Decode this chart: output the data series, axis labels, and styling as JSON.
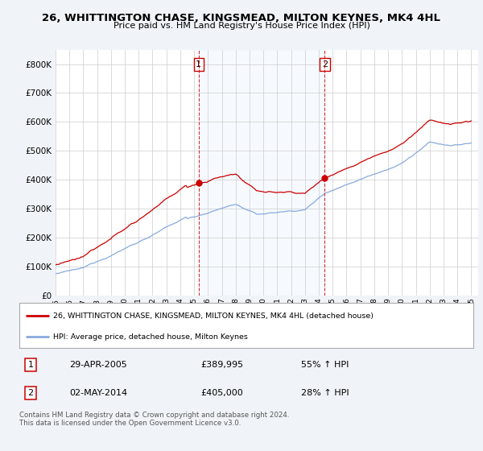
{
  "title": "26, WHITTINGTON CHASE, KINGSMEAD, MILTON KEYNES, MK4 4HL",
  "subtitle": "Price paid vs. HM Land Registry's House Price Index (HPI)",
  "legend_label_red": "26, WHITTINGTON CHASE, KINGSMEAD, MILTON KEYNES, MK4 4HL (detached house)",
  "legend_label_blue": "HPI: Average price, detached house, Milton Keynes",
  "transaction1_date": "29-APR-2005",
  "transaction1_price": "£389,995",
  "transaction1_hpi": "55% ↑ HPI",
  "transaction2_date": "02-MAY-2014",
  "transaction2_price": "£405,000",
  "transaction2_hpi": "28% ↑ HPI",
  "footer": "Contains HM Land Registry data © Crown copyright and database right 2024.\nThis data is licensed under the Open Government Licence v3.0.",
  "ylim": [
    0,
    850000
  ],
  "yticks": [
    0,
    100000,
    200000,
    300000,
    400000,
    500000,
    600000,
    700000,
    800000
  ],
  "background_color": "#f0f4f8",
  "plot_bg_color": "#ffffff",
  "shade_color": "#ddeeff",
  "red_color": "#cc0000",
  "blue_color": "#88aadd",
  "vline_color": "#cc0000",
  "t1_year": 2005.33,
  "t1_price": 389995,
  "t2_year": 2014.42,
  "t2_price": 405000,
  "xstart": 1995,
  "xend": 2025.5
}
